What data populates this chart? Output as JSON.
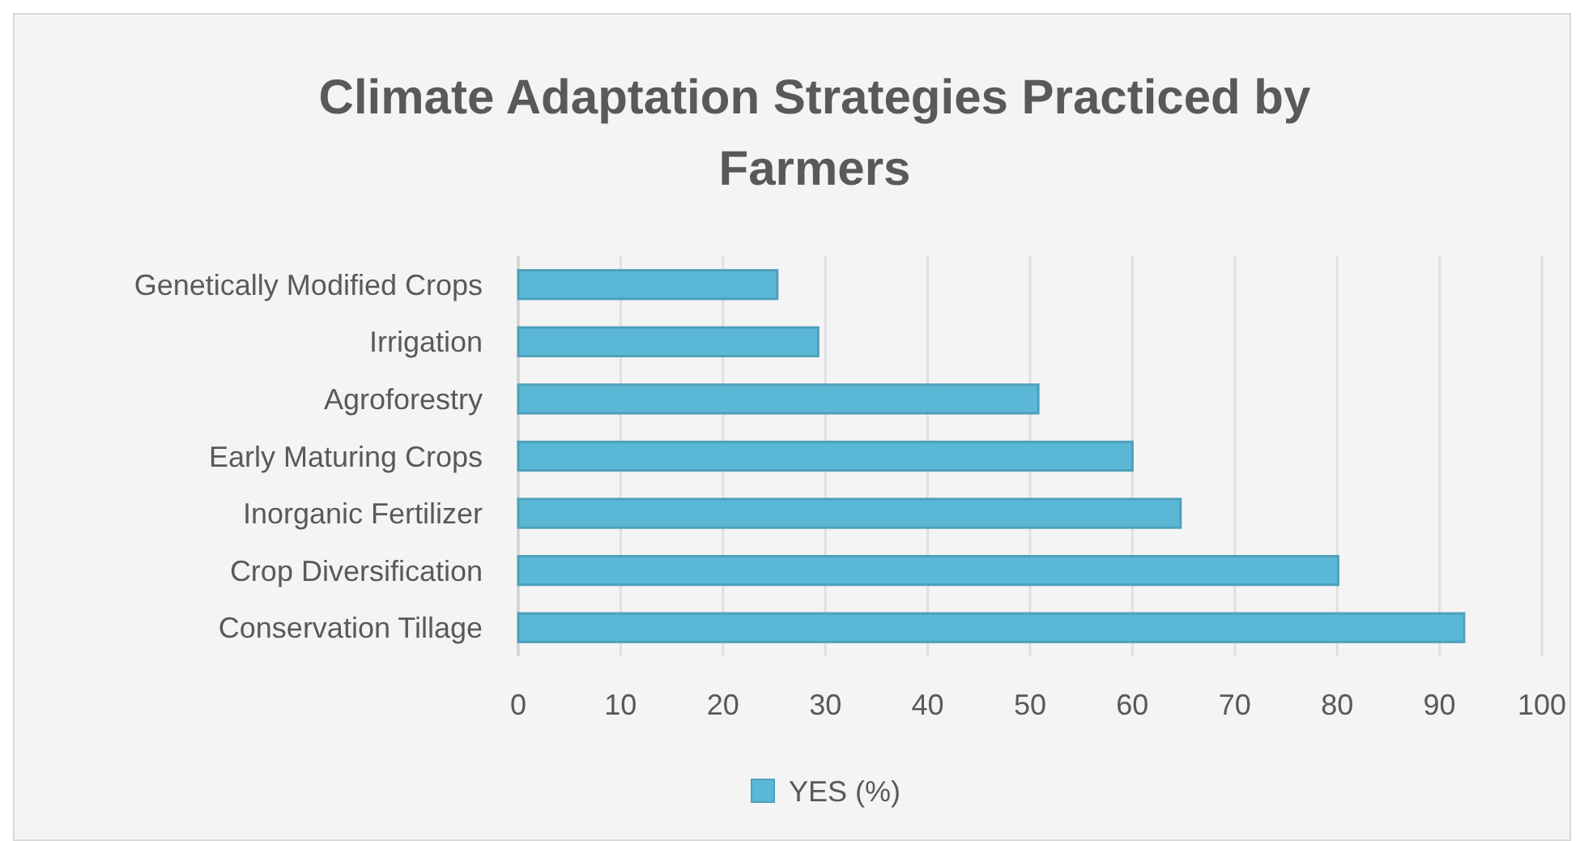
{
  "chart_data": {
    "type": "bar",
    "orientation": "horizontal",
    "title": "Climate Adaptation Strategies Practiced by Farmers",
    "categories": [
      "Genetically Modified Crops",
      "Irrigation",
      "Agroforestry",
      "Early Maturing Crops",
      "Inorganic Fertilizer",
      "Crop Diversification",
      "Conservation Tillage"
    ],
    "series": [
      {
        "name": "YES (%)",
        "color": "#5ab8d6",
        "values": [
          25.3,
          29.3,
          50.8,
          60.0,
          64.7,
          80.1,
          92.4
        ]
      }
    ],
    "xlim": [
      0,
      100
    ],
    "xticks": [
      0,
      10,
      20,
      30,
      40,
      50,
      60,
      70,
      80,
      90,
      100
    ],
    "grid": "x",
    "legend": "bottom"
  }
}
